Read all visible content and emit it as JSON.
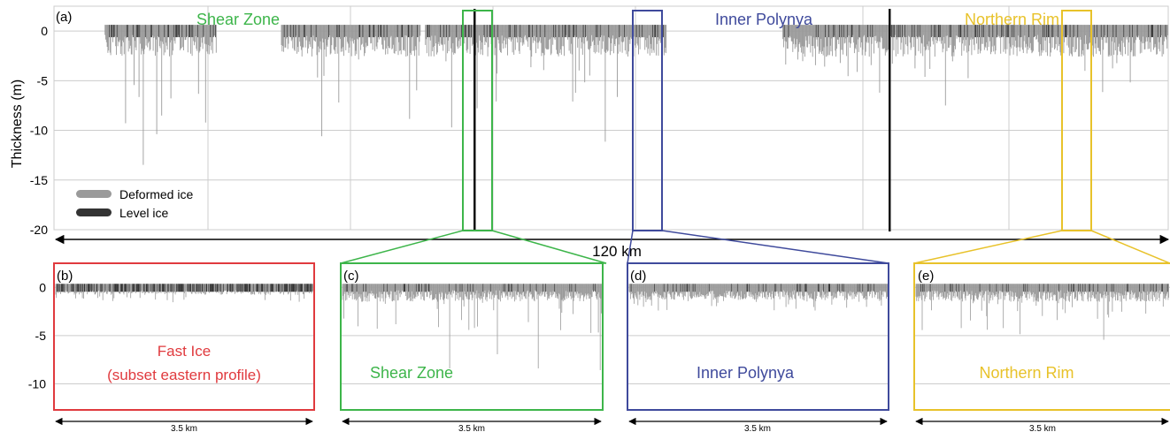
{
  "colors": {
    "deformed": "#9a9a9a",
    "level": "#333333",
    "grid": "#cccccc",
    "shear": "#3db54a",
    "polynya": "#3f4a9c",
    "rim": "#e8c22a",
    "fast": "#e03a3e",
    "axis": "#000000"
  },
  "chart_data": [
    {
      "panel_label": "(a)",
      "type": "area",
      "ylabel": "Thickness (m)",
      "yticks": [
        0,
        -5,
        -10,
        -15,
        -20
      ],
      "ylim": [
        -20,
        2.5
      ],
      "xlim": [
        0,
        120
      ],
      "x_unit": "km",
      "grid": true,
      "legend": {
        "placement": "bottom-left",
        "items": [
          "Deformed ice",
          "Level ice"
        ]
      },
      "scale_bar": "120 km",
      "region_labels": [
        "Shear Zone",
        "Inner Polynya",
        "Northern Rim"
      ],
      "segments": [
        {
          "x": [
            5.5,
            17.5
          ],
          "max_draft": -13.5
        },
        {
          "x": [
            24.5,
            39.5
          ],
          "max_draft": -12.5
        },
        {
          "x": [
            40,
            66
          ],
          "max_draft": -11.5
        },
        {
          "x": [
            78.5,
            88
          ],
          "max_draft": -5
        },
        {
          "x": [
            88,
            120
          ],
          "max_draft": -8.5
        }
      ],
      "zoom_boxes": [
        {
          "region": "Shear Zone",
          "x": [
            42,
            45
          ]
        },
        {
          "region": "Inner Polynya",
          "x": [
            58,
            61
          ]
        },
        {
          "region": "Northern Rim",
          "x": [
            104,
            107
          ]
        }
      ],
      "vertical_lines_x": [
        45.3,
        90
      ]
    },
    {
      "panel_label": "(b)",
      "region": "Fast Ice",
      "subtitle": "(subset eastern profile)",
      "type": "area",
      "yticks": [
        0,
        -5,
        -10
      ],
      "ylim": [
        -12.7,
        2.5
      ],
      "scale_bar": "3.5 km",
      "max_draft": -1.2
    },
    {
      "panel_label": "(c)",
      "region": "Shear Zone",
      "type": "area",
      "yticks": [
        0,
        -5,
        -10
      ],
      "ylim": [
        -12.7,
        2.5
      ],
      "scale_bar": "3.5 km",
      "max_draft": -9.0
    },
    {
      "panel_label": "(d)",
      "region": "Inner Polynya",
      "type": "area",
      "yticks": [
        0,
        -5,
        -10
      ],
      "ylim": [
        -12.7,
        2.5
      ],
      "scale_bar": "3.5 km",
      "max_draft": -2.5
    },
    {
      "panel_label": "(e)",
      "region": "Northern Rim",
      "type": "area",
      "yticks": [
        0,
        -5,
        -10
      ],
      "ylim": [
        -12.7,
        2.5
      ],
      "scale_bar": "3.5 km",
      "max_draft": -5.5
    }
  ]
}
